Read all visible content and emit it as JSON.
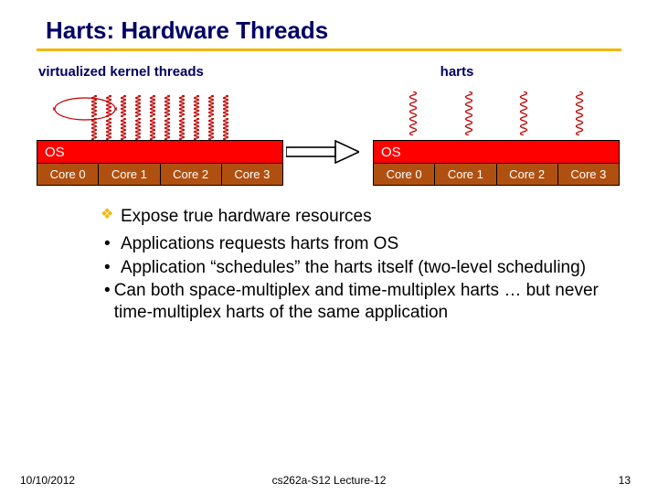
{
  "slide": {
    "title": "Harts: Hardware Threads",
    "title_color": "#000066",
    "underline_color": "#f0b800",
    "labels": {
      "left": "virtualized kernel threads",
      "right": "harts"
    },
    "left_block": {
      "os_label": "OS",
      "cores": [
        "Core 0",
        "Core 1",
        "Core 2",
        "Core 3"
      ],
      "spring_color": "#c00000",
      "spring_stack_count": 10,
      "spring_rows": 2,
      "os_bg": "#ff0000",
      "core_bg": "#b05010"
    },
    "right_block": {
      "os_label": "OS",
      "cores": [
        "Core 0",
        "Core 1",
        "Core 2",
        "Core 3"
      ],
      "spring_color": "#c00000",
      "spring_count": 4,
      "os_bg": "#ff0000",
      "core_bg": "#b05010"
    },
    "arrow_color": "#000000",
    "main_bullet": "Expose true hardware resources",
    "sub_bullets": [
      "Applications requests harts from OS",
      "Application “schedules” the harts itself (two-level scheduling)",
      "Can both space-multiplex and time-multiplex harts … but never time-multiplex harts of the same application"
    ]
  },
  "footer": {
    "date": "10/10/2012",
    "course": "cs262a-S12 Lecture-12",
    "page": "13"
  }
}
